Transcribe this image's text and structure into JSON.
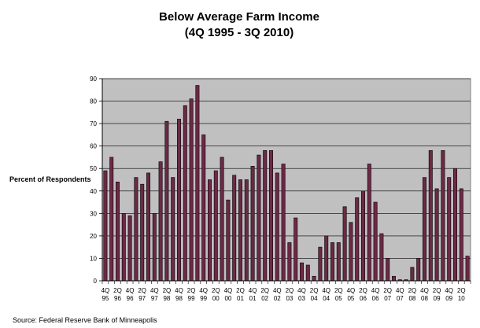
{
  "chart_data": {
    "type": "bar",
    "title": "Below Average Farm Income",
    "subtitle": "(4Q 1995 - 3Q 2010)",
    "ylabel": "Percent of Respondents",
    "xlabel": "",
    "ylim": [
      0,
      90
    ],
    "yticks": [
      0,
      10,
      20,
      30,
      40,
      50,
      60,
      70,
      80,
      90
    ],
    "grid": true,
    "legend": "none",
    "source": "Source: Federal Reserve Bank of Minneapolis",
    "bar_color": "#6b2a45",
    "plot_background": "#c0c0c0",
    "x_labels": [
      {
        "q": "4Q",
        "y": "95"
      },
      {
        "q": "2Q",
        "y": "96"
      },
      {
        "q": "4Q",
        "y": "96"
      },
      {
        "q": "2Q",
        "y": "97"
      },
      {
        "q": "4Q",
        "y": "97"
      },
      {
        "q": "2Q",
        "y": "98"
      },
      {
        "q": "4Q",
        "y": "98"
      },
      {
        "q": "2Q",
        "y": "99"
      },
      {
        "q": "4Q",
        "y": "99"
      },
      {
        "q": "2Q",
        "y": "00"
      },
      {
        "q": "4Q",
        "y": "00"
      },
      {
        "q": "2Q",
        "y": "01"
      },
      {
        "q": "4Q",
        "y": "01"
      },
      {
        "q": "2Q",
        "y": "02"
      },
      {
        "q": "4Q",
        "y": "02"
      },
      {
        "q": "2Q",
        "y": "03"
      },
      {
        "q": "4Q",
        "y": "03"
      },
      {
        "q": "2Q",
        "y": "04"
      },
      {
        "q": "4Q",
        "y": "04"
      },
      {
        "q": "2Q",
        "y": "05"
      },
      {
        "q": "4Q",
        "y": "05"
      },
      {
        "q": "2Q",
        "y": "06"
      },
      {
        "q": "4Q",
        "y": "06"
      },
      {
        "q": "2Q",
        "y": "07"
      },
      {
        "q": "4Q",
        "y": "07"
      },
      {
        "q": "2Q",
        "y": "08"
      },
      {
        "q": "4Q",
        "y": "08"
      },
      {
        "q": "2Q",
        "y": "09"
      },
      {
        "q": "4Q",
        "y": "09"
      },
      {
        "q": "2Q",
        "y": "10"
      }
    ],
    "values": [
      49,
      55,
      44,
      30,
      29,
      46,
      43,
      48,
      30,
      53,
      71,
      46,
      72,
      78,
      81,
      87,
      65,
      45,
      49,
      55,
      36,
      47,
      45,
      45,
      51,
      56,
      58,
      58,
      48,
      52,
      17,
      28,
      8,
      7,
      2,
      15,
      20,
      17,
      17,
      33,
      26,
      37,
      40,
      52,
      35,
      21,
      10,
      2,
      0.5,
      0.5,
      6,
      10,
      46,
      58,
      41,
      58,
      46,
      50,
      41,
      11
    ]
  }
}
